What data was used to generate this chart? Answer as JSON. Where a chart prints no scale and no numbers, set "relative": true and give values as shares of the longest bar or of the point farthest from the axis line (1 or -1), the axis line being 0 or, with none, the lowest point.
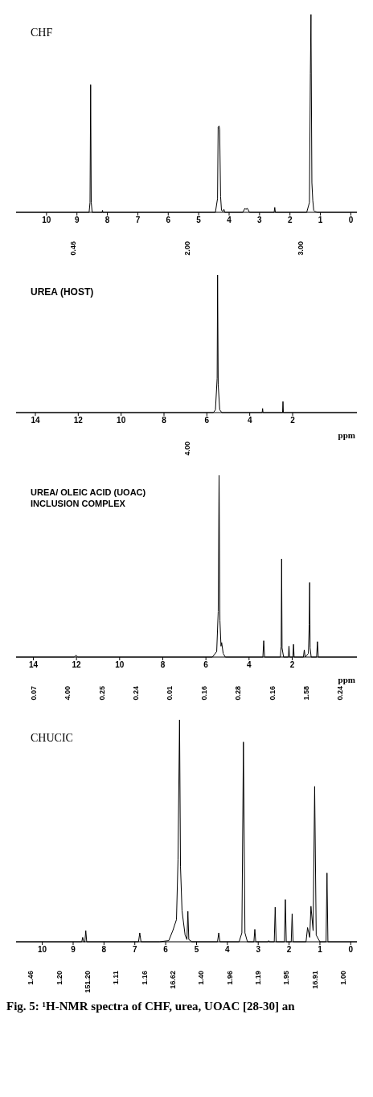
{
  "chart_data": [
    {
      "type": "line",
      "title": "CHF",
      "relative": true,
      "xlim": [
        11,
        -0.2
      ],
      "xticks": [
        10,
        9,
        8,
        7,
        6,
        5,
        4,
        3,
        2,
        1,
        0
      ],
      "series": [
        {
          "color": "#000000",
          "x": [
            11,
            8.6,
            8.57,
            8.55,
            8.53,
            8.5,
            8.17,
            8.16,
            8.15,
            4.45,
            4.38,
            4.36,
            4.33,
            4.31,
            4.28,
            4.25,
            4.2,
            4.17,
            4.14,
            3.55,
            3.48,
            3.45,
            3.4,
            3.33,
            2.52,
            2.5,
            2.48,
            1.45,
            1.36,
            1.33,
            1.31,
            1.28,
            1.25,
            1.22,
            1.19,
            1.1,
            -0.2
          ],
          "values": [
            0,
            0,
            0.05,
            0.645,
            0.05,
            0,
            0,
            0.01,
            0,
            0,
            0.07,
            0.43,
            0.436,
            0.42,
            0.08,
            0.01,
            0.005,
            0.015,
            0,
            0,
            0.02,
            0.015,
            0.02,
            0,
            0,
            0.025,
            0,
            0,
            0.05,
            0.7,
            1,
            0.15,
            0.06,
            0.01,
            0.005,
            0,
            0
          ]
        }
      ],
      "annotations": [
        "0.46",
        "2.00",
        "3.00"
      ]
    },
    {
      "type": "line",
      "title": "UREA (HOST)",
      "xlabel": "ppm",
      "relative": true,
      "xlim": [
        14.9,
        -1.0
      ],
      "xticks": [
        14,
        12,
        10,
        8,
        6,
        4,
        2
      ],
      "series": [
        {
          "color": "#000000",
          "x": [
            14.9,
            5.7,
            5.6,
            5.52,
            5.5,
            5.47,
            5.4,
            5.3,
            3.42,
            3.4,
            3.38,
            2.47,
            2.45,
            2.43,
            -1.0
          ],
          "values": [
            0,
            0,
            0.02,
            0.25,
            1,
            0.2,
            0.02,
            0,
            0,
            0.03,
            0,
            0,
            0.08,
            0,
            0
          ]
        }
      ],
      "annotations": [
        "4.00"
      ]
    },
    {
      "type": "line",
      "title": "UREA/ OLEIC ACID (UOAC) INCLUSION COMPLEX",
      "xlabel": "ppm",
      "relative": true,
      "xlim": [
        14.8,
        -1.0
      ],
      "xticks": [
        14,
        12,
        10,
        8,
        6,
        4,
        2
      ],
      "series": [
        {
          "color": "#000000",
          "x": [
            14.8,
            12.1,
            12.02,
            11.95,
            5.7,
            5.5,
            5.43,
            5.39,
            5.35,
            5.3,
            5.27,
            5.2,
            5.1,
            3.36,
            3.32,
            3.28,
            2.55,
            2.51,
            2.49,
            2.47,
            2.4,
            2.18,
            2.15,
            2.12,
            1.97,
            1.94,
            1.91,
            1.48,
            1.44,
            1.4,
            1.25,
            1.21,
            1.19,
            1.17,
            1.12,
            0.87,
            0.83,
            0.79,
            -1.0
          ],
          "values": [
            0,
            0,
            0.01,
            0,
            0,
            0.03,
            0.25,
            1,
            0.2,
            0.06,
            0.08,
            0.02,
            0,
            0,
            0.09,
            0,
            0,
            0.06,
            0.54,
            0.05,
            0,
            0,
            0.06,
            0,
            0,
            0.07,
            0,
            0,
            0.04,
            0,
            0.02,
            0.18,
            0.41,
            0.05,
            0,
            0,
            0.085,
            0,
            0
          ]
        }
      ],
      "annotations": [
        "0.07",
        "4.00",
        "0.25",
        "0.24",
        "0.01",
        "0.16",
        "0.28",
        "0.16",
        "1.58",
        "0.24"
      ]
    },
    {
      "type": "line",
      "title": "CHUCIC",
      "relative": true,
      "xlim": [
        10.85,
        -0.2
      ],
      "xticks": [
        10,
        9,
        8,
        7,
        6,
        5,
        4,
        3,
        2,
        1,
        0
      ],
      "series": [
        {
          "color": "#000000",
          "x": [
            10.85,
            8.72,
            8.69,
            8.66,
            8.62,
            8.59,
            8.56,
            6.88,
            6.84,
            6.8,
            6.2,
            5.9,
            5.77,
            5.65,
            5.6,
            5.55,
            5.52,
            5.47,
            5.37,
            5.31,
            5.28,
            5.25,
            5.15,
            4.32,
            4.28,
            4.24,
            3.62,
            3.53,
            3.48,
            3.43,
            3.35,
            3.14,
            3.11,
            3.08,
            2.68,
            2.66,
            2.64,
            2.48,
            2.45,
            2.42,
            2.15,
            2.12,
            2.09,
            1.93,
            1.9,
            1.87,
            1.45,
            1.4,
            1.33,
            1.29,
            1.22,
            1.17,
            1.12,
            1.0,
            0.8,
            0.77,
            0.74,
            -0.2
          ],
          "values": [
            0,
            0,
            0.02,
            0,
            0,
            0.05,
            0,
            0,
            0.04,
            0,
            0,
            0.005,
            0.05,
            0.1,
            0.37,
            1,
            0.34,
            0.14,
            0.03,
            0.01,
            0.137,
            0.01,
            0,
            0,
            0.04,
            0,
            0,
            0.04,
            0.9,
            0.04,
            0,
            0,
            0.056,
            0,
            0,
            0.005,
            0,
            0,
            0.156,
            0,
            0,
            0.19,
            0,
            0,
            0.126,
            0,
            0,
            0.064,
            0.02,
            0.16,
            0.05,
            0.7,
            0.03,
            0,
            0,
            0.31,
            0,
            0
          ]
        }
      ],
      "annotations": [
        "1.46",
        "1.20",
        "151.20",
        "1.11",
        "1.16",
        "16.62",
        "1.40",
        "1.96",
        "1.19",
        "1.95",
        "16.91",
        "1.00",
        "Fig. 5: ¹H-NMR spectra of CHF, urea, UOAC [28-30] an"
      ]
    }
  ]
}
